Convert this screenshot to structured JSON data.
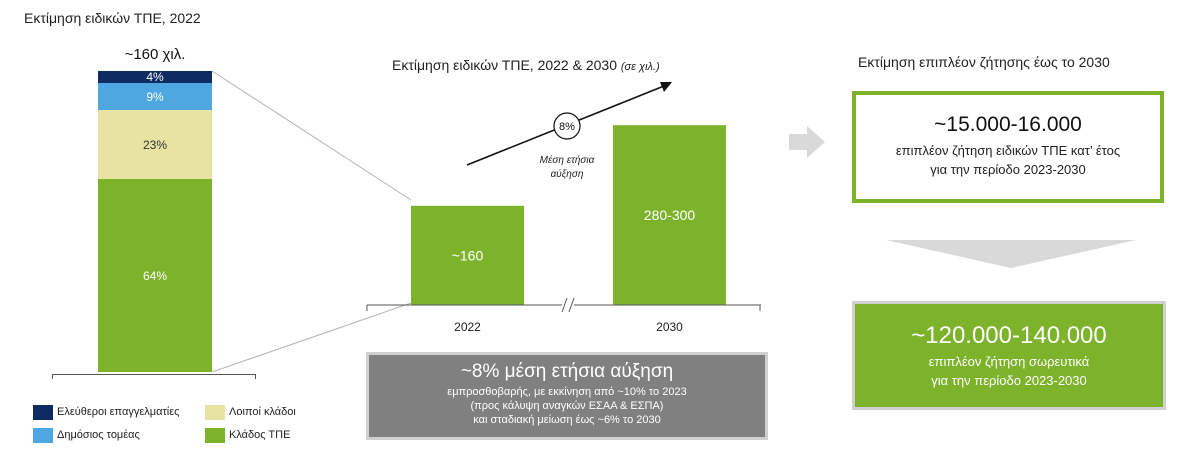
{
  "left_title": "Εκτίμηση ειδικών ΤΠΕ, 2022",
  "middle_title": "Εκτίμηση ειδικών ΤΠΕ, 2022 & 2030",
  "middle_title_unit": "(σε χιλ.)",
  "right_title": "Εκτίμηση επιπλέον ζήτησης έως το 2030",
  "stacked_total_label": "~160 χιλ.",
  "growth_rate_label": "8%",
  "growth_caption": [
    "Μέση ετήσια",
    "αύξηση"
  ],
  "colors": {
    "green": "#7cb32b",
    "navy": "#0f2b63",
    "light_blue": "#4ea7e0",
    "khaki": "#e7e3a3",
    "grey_box": "#7f7f7f",
    "arrow_grey": "#d9d9d9"
  },
  "chart_data": [
    {
      "type": "bar",
      "stacked": true,
      "title": "Εκτίμηση ειδικών ΤΠΕ, 2022",
      "total_label": "~160 χιλ.",
      "series": [
        {
          "name": "Κλάδος ΤΠΕ",
          "value": 64,
          "label": "64%",
          "color": "#7cb32b"
        },
        {
          "name": "Λοιποί κλάδοι",
          "value": 23,
          "label": "23%",
          "color": "#e7e3a3"
        },
        {
          "name": "Δημόσιος τομέας",
          "value": 9,
          "label": "9%",
          "color": "#4ea7e0"
        },
        {
          "name": "Ελεύθεροι επαγγελματίες",
          "value": 4,
          "label": "4%",
          "color": "#0f2b63"
        }
      ]
    },
    {
      "type": "bar",
      "title": "Εκτίμηση ειδικών ΤΠΕ, 2022 & 2030",
      "unit": "(σε χιλ.)",
      "categories": [
        "2022",
        "2030"
      ],
      "values": [
        160,
        290
      ],
      "value_labels": [
        "~160",
        "280-300"
      ],
      "ylim": [
        0,
        300
      ],
      "annotation": "8%"
    }
  ],
  "legend": [
    {
      "label": "Ελεύθεροι επαγγελματίες",
      "color": "#0f2b63"
    },
    {
      "label": "Λοιποί κλάδοι",
      "color": "#e7e3a3"
    },
    {
      "label": "Δημόσιος τομέας",
      "color": "#4ea7e0"
    },
    {
      "label": "Κλάδος ΤΠΕ",
      "color": "#7cb32b"
    }
  ],
  "growth_box": {
    "headline": "~8% μέση ετήσια αύξηση",
    "lines": [
      "εμπροσθοβαρής, με εκκίνηση από ~10% το 2023",
      "(προς κάλυψη αναγκών ΕΣΑΑ & ΕΣΠΑ)",
      "και σταδιακή μείωση έως ~6% το 2030"
    ]
  },
  "annual_box": {
    "headline": "~15.000-16.000",
    "lines": [
      "επιπλέον ζήτηση ειδικών ΤΠΕ κατ’ έτος",
      "για την περίοδο 2023-2030"
    ]
  },
  "cumulative_box": {
    "headline": "~120.000-140.000",
    "lines": [
      "επιπλέον ζήτηση σωρευτικά",
      "για την περίοδο 2023-2030"
    ]
  }
}
